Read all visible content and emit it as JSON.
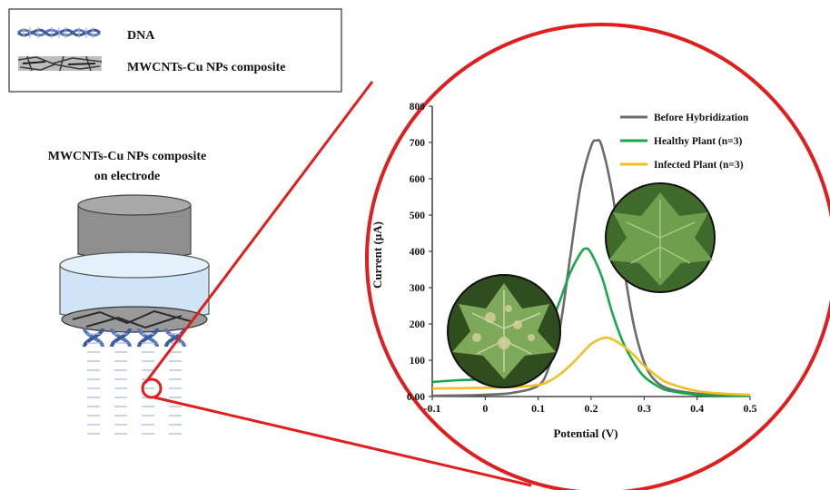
{
  "legend_box": {
    "items": [
      {
        "label": "DNA",
        "icon": "dna-helix-icon"
      },
      {
        "label": "MWCNTs-Cu  NPs composite",
        "icon": "composite-texture-icon"
      }
    ]
  },
  "electrode": {
    "title_line1": "MWCNTs-Cu  NPs composite",
    "title_line2": "on electrode",
    "icon": "electrode-icon"
  },
  "colors": {
    "zoom_circle": "#e01e1e",
    "before": "#6b6b6b",
    "healthy": "#17a84b",
    "infected": "#f2c020",
    "electrode_top": "#8f8f8f",
    "electrode_body": "#cfe5f7",
    "dna": "#5b79b5"
  },
  "chart_data": {
    "type": "line",
    "xlabel": "Potential (V)",
    "ylabel": "Current (µA)",
    "xlim": [
      -0.1,
      0.5
    ],
    "ylim": [
      0,
      800
    ],
    "xticks": [
      "-0.1",
      "0",
      "0.1",
      "0.2",
      "0.3",
      "0.4",
      "0.5"
    ],
    "yticks": [
      "0.00",
      "100",
      "200",
      "300",
      "400",
      "500",
      "600",
      "700",
      "800"
    ],
    "legend_position": "top-right",
    "grid": false,
    "series": [
      {
        "name": "Before Hybridization",
        "color": "#6b6b6b",
        "x": [
          -0.1,
          -0.05,
          0.0,
          0.05,
          0.1,
          0.12,
          0.14,
          0.16,
          0.18,
          0.2,
          0.21,
          0.22,
          0.24,
          0.26,
          0.28,
          0.3,
          0.32,
          0.35,
          0.4,
          0.45,
          0.5
        ],
        "y": [
          2,
          3,
          5,
          10,
          30,
          80,
          180,
          380,
          580,
          690,
          705,
          690,
          560,
          370,
          200,
          95,
          45,
          20,
          8,
          4,
          2
        ]
      },
      {
        "name": "Healthy Plant (n=3)",
        "color": "#17a84b",
        "x": [
          -0.1,
          -0.05,
          0.0,
          0.05,
          0.08,
          0.1,
          0.12,
          0.14,
          0.16,
          0.18,
          0.19,
          0.2,
          0.22,
          0.24,
          0.26,
          0.28,
          0.3,
          0.33,
          0.35,
          0.4,
          0.45,
          0.5
        ],
        "y": [
          40,
          45,
          48,
          58,
          80,
          120,
          185,
          260,
          340,
          395,
          408,
          395,
          330,
          230,
          150,
          95,
          55,
          25,
          15,
          5,
          3,
          2
        ]
      },
      {
        "name": "Infected Plant (n=3)",
        "color": "#f2c020",
        "x": [
          -0.1,
          -0.05,
          0.0,
          0.05,
          0.1,
          0.12,
          0.14,
          0.16,
          0.18,
          0.2,
          0.22,
          0.23,
          0.24,
          0.26,
          0.28,
          0.3,
          0.33,
          0.35,
          0.4,
          0.45,
          0.5
        ],
        "y": [
          22,
          23,
          24,
          26,
          32,
          42,
          60,
          85,
          115,
          145,
          160,
          162,
          158,
          140,
          115,
          85,
          50,
          35,
          15,
          8,
          5
        ]
      }
    ]
  }
}
